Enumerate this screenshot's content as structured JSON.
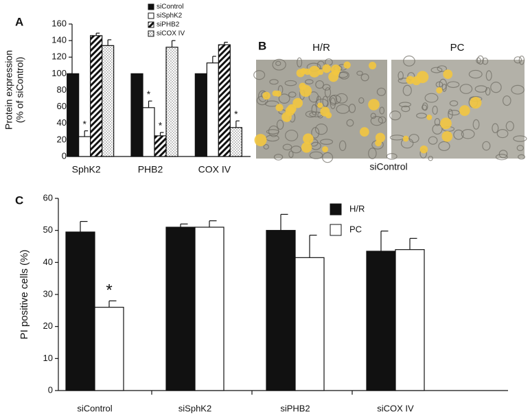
{
  "chart_data": [
    {
      "type": "bar",
      "panel": "A",
      "ylabel": [
        "Protein expression",
        "(% of siControl)"
      ],
      "categories": [
        "SphK2",
        "PHB2",
        "COX IV"
      ],
      "series": [
        {
          "name": "siControl",
          "color": "#111111",
          "pattern": "solid",
          "values": [
            100,
            100,
            100
          ],
          "errors": [
            0,
            0,
            0
          ]
        },
        {
          "name": "siSphK2",
          "color": "#111111",
          "pattern": "open",
          "values": [
            24,
            59,
            113
          ],
          "errors": [
            7,
            8,
            8
          ]
        },
        {
          "name": "siPHB2",
          "color": "#111111",
          "pattern": "hatch",
          "values": [
            146,
            25,
            135
          ],
          "errors": [
            3,
            4,
            3
          ]
        },
        {
          "name": "siCOX IV",
          "color": "#111111",
          "pattern": "dots",
          "values": [
            134,
            132,
            35
          ],
          "errors": [
            7,
            8,
            8
          ]
        }
      ],
      "annotations": [
        {
          "text": "*",
          "series": 1,
          "category": 0
        },
        {
          "text": "*",
          "series": 1,
          "category": 1
        },
        {
          "text": "*",
          "series": 2,
          "category": 1
        },
        {
          "text": "*",
          "series": 3,
          "category": 2
        }
      ],
      "ylim": [
        0,
        160
      ],
      "yticks": [
        0,
        20,
        40,
        60,
        80,
        100,
        120,
        140,
        160
      ],
      "legend": "top"
    },
    {
      "type": "bar",
      "panel": "C",
      "ylabel": "PI positive cells (%)",
      "categories": [
        "siControl",
        "siSphK2",
        "siPHB2",
        "siCOX IV"
      ],
      "series": [
        {
          "name": "H/R",
          "color": "#111111",
          "pattern": "solid",
          "values": [
            49.5,
            51,
            50,
            43.5
          ],
          "errors": [
            3.3,
            1,
            5,
            6.3
          ]
        },
        {
          "name": "PC",
          "color": "#111111",
          "pattern": "open",
          "values": [
            26,
            51,
            41.5,
            44
          ],
          "errors": [
            2,
            2,
            7,
            3.5
          ]
        }
      ],
      "annotations": [
        {
          "text": "*",
          "series": 1,
          "category": 0
        }
      ],
      "ylim": [
        0,
        60
      ],
      "yticks": [
        0,
        10,
        20,
        30,
        40,
        50,
        60
      ],
      "legend": "top right"
    }
  ],
  "panel_b": {
    "panel": "B",
    "images": [
      "H/R",
      "PC"
    ],
    "caption": "siControl"
  }
}
